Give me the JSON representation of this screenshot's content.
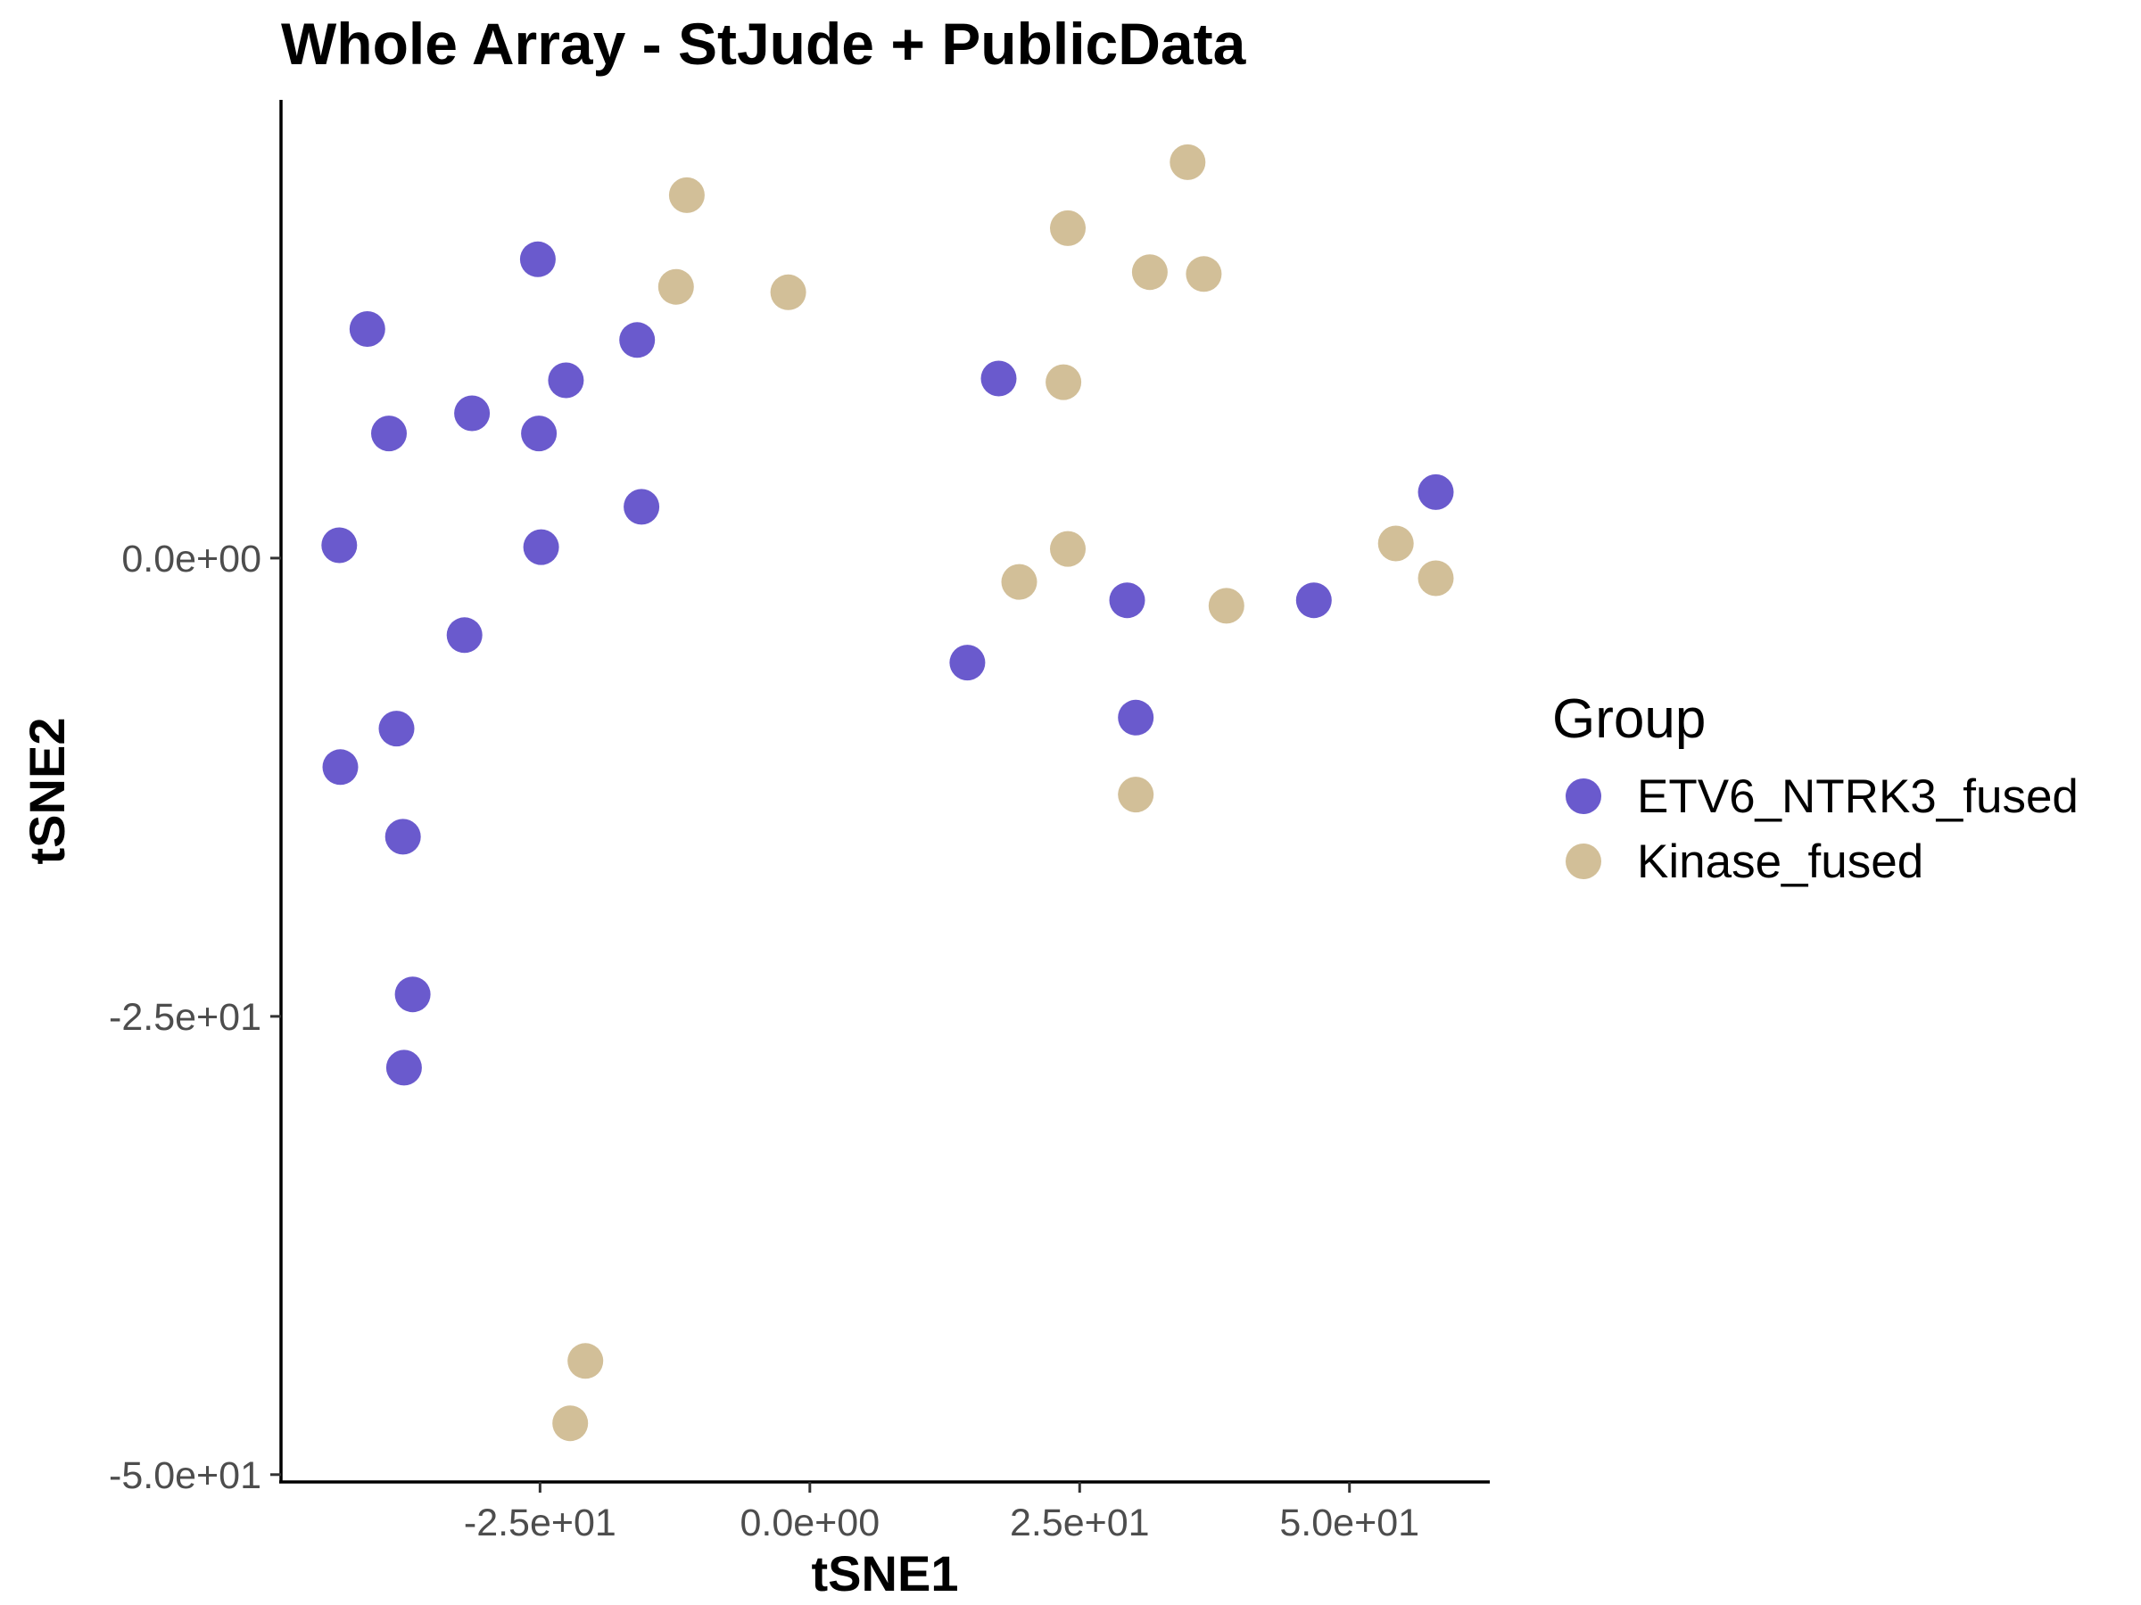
{
  "chart_data": {
    "type": "scatter",
    "title": "Whole Array - StJude + PublicData",
    "xlabel": "tSNE1",
    "ylabel": "tSNE2",
    "xlim": [
      -49,
      63
    ],
    "ylim": [
      -50.4,
      25
    ],
    "x_ticks": [
      {
        "value": -25,
        "label": "-2.5e+01"
      },
      {
        "value": 0,
        "label": "0.0e+00"
      },
      {
        "value": 25,
        "label": "2.5e+01"
      },
      {
        "value": 50,
        "label": "5.0e+01"
      }
    ],
    "y_ticks": [
      {
        "value": 0,
        "label": "0.0e+00"
      },
      {
        "value": -25,
        "label": "-2.5e+01"
      },
      {
        "value": -50,
        "label": "-5.0e+01"
      }
    ],
    "grid": false,
    "legend": {
      "title": "Group",
      "position": "right"
    },
    "series": [
      {
        "name": "ETV6_NTRK3_fused",
        "color": "#6a5acd",
        "points": [
          [
            -25.2,
            16.3
          ],
          [
            -41.0,
            12.5
          ],
          [
            -16.0,
            11.9
          ],
          [
            -22.6,
            9.7
          ],
          [
            -31.3,
            7.9
          ],
          [
            -39.0,
            6.8
          ],
          [
            -25.1,
            6.8
          ],
          [
            -15.6,
            2.8
          ],
          [
            -43.6,
            0.7
          ],
          [
            -24.9,
            0.6
          ],
          [
            -32.0,
            -4.2
          ],
          [
            -38.3,
            -9.3
          ],
          [
            -43.5,
            -11.4
          ],
          [
            -37.7,
            -15.2
          ],
          [
            -36.8,
            -23.8
          ],
          [
            -37.6,
            -27.8
          ],
          [
            17.5,
            9.8
          ],
          [
            14.6,
            -5.7
          ],
          [
            29.4,
            -2.3
          ],
          [
            30.2,
            -8.7
          ],
          [
            46.7,
            -2.3
          ],
          [
            58.0,
            3.6
          ]
        ]
      },
      {
        "name": "Kinase_fused",
        "color": "#d2bf98",
        "points": [
          [
            -11.4,
            19.8
          ],
          [
            -12.4,
            14.8
          ],
          [
            -2.0,
            14.5
          ],
          [
            23.9,
            18.0
          ],
          [
            35.0,
            21.6
          ],
          [
            31.5,
            15.6
          ],
          [
            36.5,
            15.5
          ],
          [
            23.5,
            9.6
          ],
          [
            23.9,
            0.5
          ],
          [
            19.4,
            -1.3
          ],
          [
            38.6,
            -2.6
          ],
          [
            54.3,
            0.8
          ],
          [
            58.0,
            -1.1
          ],
          [
            30.2,
            -12.9
          ],
          [
            -20.8,
            -43.8
          ],
          [
            -22.2,
            -47.2
          ]
        ]
      }
    ]
  }
}
